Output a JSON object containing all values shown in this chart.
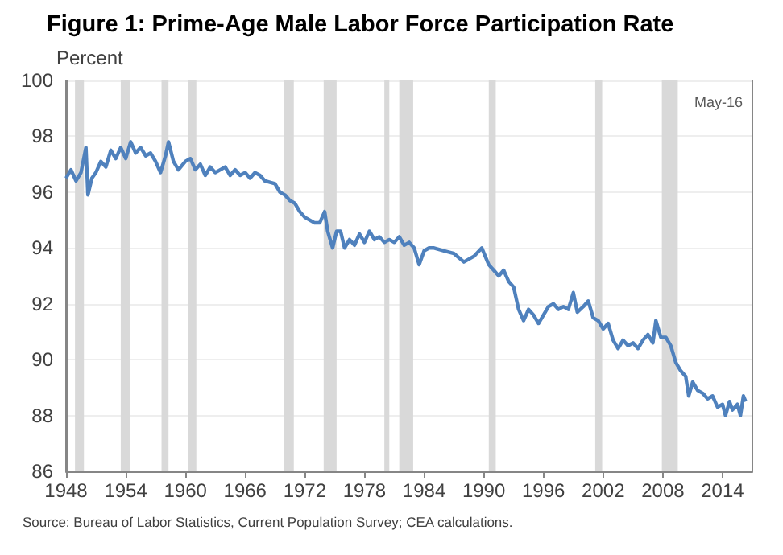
{
  "chart_data": {
    "type": "line",
    "title": "Figure 1: Prime-Age Male Labor Force Participation Rate",
    "ylabel": "Percent",
    "annotations": [
      "May-16",
      "Source: Bureau of Labor Statistics, Current Population Survey; CEA calculations."
    ],
    "x": [
      1948.0,
      1948.5,
      1949.0,
      1949.5,
      1950.0,
      1950.2,
      1950.6,
      1951.0,
      1951.5,
      1952.0,
      1952.5,
      1953.0,
      1953.5,
      1954.0,
      1954.5,
      1955.0,
      1955.5,
      1956.0,
      1956.5,
      1957.0,
      1957.5,
      1958.0,
      1958.3,
      1958.8,
      1959.3,
      1960.0,
      1960.5,
      1961.0,
      1961.5,
      1962.0,
      1962.5,
      1963.0,
      1964.0,
      1964.5,
      1965.0,
      1965.5,
      1966.0,
      1966.5,
      1967.0,
      1967.5,
      1968.0,
      1969.0,
      1969.5,
      1970.0,
      1970.5,
      1971.0,
      1971.5,
      1972.0,
      1972.5,
      1973.0,
      1973.5,
      1974.0,
      1974.3,
      1974.8,
      1975.2,
      1975.6,
      1976.0,
      1976.5,
      1977.0,
      1977.5,
      1978.0,
      1978.5,
      1979.0,
      1979.5,
      1980.0,
      1980.5,
      1981.0,
      1981.5,
      1982.0,
      1982.5,
      1983.0,
      1983.5,
      1984.0,
      1984.5,
      1985.0,
      1986.0,
      1987.0,
      1988.0,
      1989.0,
      1989.8,
      1990.5,
      1991.0,
      1991.5,
      1992.0,
      1992.5,
      1993.0,
      1993.5,
      1994.0,
      1994.5,
      1995.0,
      1995.5,
      1996.0,
      1996.5,
      1997.0,
      1997.5,
      1998.0,
      1998.5,
      1999.0,
      1999.4,
      2000.0,
      2000.5,
      2001.0,
      2001.5,
      2002.0,
      2002.5,
      2003.0,
      2003.5,
      2004.0,
      2004.5,
      2005.0,
      2005.5,
      2006.0,
      2006.5,
      2007.0,
      2007.3,
      2007.8,
      2008.3,
      2008.8,
      2009.3,
      2009.8,
      2010.3,
      2010.6,
      2011.0,
      2011.5,
      2012.0,
      2012.5,
      2013.0,
      2013.5,
      2014.0,
      2014.3,
      2014.7,
      2015.0,
      2015.5,
      2015.8,
      2016.1,
      2016.33
    ],
    "series": [
      {
        "color": "#4f81bd",
        "values": [
          96.5,
          96.8,
          96.4,
          96.7,
          97.6,
          95.9,
          96.5,
          96.7,
          97.1,
          96.9,
          97.5,
          97.2,
          97.6,
          97.2,
          97.8,
          97.4,
          97.6,
          97.3,
          97.4,
          97.1,
          96.7,
          97.3,
          97.8,
          97.1,
          96.8,
          97.1,
          97.2,
          96.8,
          97.0,
          96.6,
          96.9,
          96.7,
          96.9,
          96.6,
          96.8,
          96.6,
          96.7,
          96.5,
          96.7,
          96.6,
          96.4,
          96.3,
          96.0,
          95.9,
          95.7,
          95.6,
          95.3,
          95.1,
          95.0,
          94.9,
          94.9,
          95.3,
          94.6,
          94.0,
          94.6,
          94.6,
          94.0,
          94.3,
          94.1,
          94.5,
          94.2,
          94.6,
          94.3,
          94.4,
          94.2,
          94.3,
          94.2,
          94.4,
          94.1,
          94.2,
          94.0,
          93.4,
          93.9,
          94.0,
          94.0,
          93.9,
          93.8,
          93.5,
          93.7,
          94.0,
          93.4,
          93.2,
          93.0,
          93.2,
          92.8,
          92.6,
          91.8,
          91.4,
          91.8,
          91.6,
          91.3,
          91.6,
          91.9,
          92.0,
          91.8,
          91.9,
          91.8,
          92.4,
          91.7,
          91.9,
          92.1,
          91.5,
          91.4,
          91.1,
          91.3,
          90.7,
          90.4,
          90.7,
          90.5,
          90.6,
          90.4,
          90.7,
          90.9,
          90.6,
          91.4,
          90.8,
          90.8,
          90.5,
          89.9,
          89.6,
          89.4,
          88.7,
          89.2,
          88.9,
          88.8,
          88.6,
          88.7,
          88.3,
          88.4,
          88.0,
          88.5,
          88.2,
          88.4,
          88.0,
          88.7,
          88.5
        ]
      }
    ],
    "xlim": [
      1948,
      2017
    ],
    "xticks": [
      1948,
      1954,
      1960,
      1966,
      1972,
      1978,
      1984,
      1990,
      1996,
      2002,
      2008,
      2014
    ],
    "ylim": [
      86,
      100
    ],
    "yticks": [
      86,
      88,
      90,
      92,
      94,
      96,
      98,
      100
    ],
    "grid": "y",
    "bands": [
      {
        "axis": "x",
        "from": 1948.9,
        "to": 1949.8,
        "color": "#d9d9d9"
      },
      {
        "axis": "x",
        "from": 1953.5,
        "to": 1954.4,
        "color": "#d9d9d9"
      },
      {
        "axis": "x",
        "from": 1957.6,
        "to": 1958.3,
        "color": "#d9d9d9"
      },
      {
        "axis": "x",
        "from": 1960.3,
        "to": 1961.1,
        "color": "#d9d9d9"
      },
      {
        "axis": "x",
        "from": 1969.9,
        "to": 1970.9,
        "color": "#d9d9d9"
      },
      {
        "axis": "x",
        "from": 1973.9,
        "to": 1975.2,
        "color": "#d9d9d9"
      },
      {
        "axis": "x",
        "from": 1980.0,
        "to": 1980.5,
        "color": "#d9d9d9"
      },
      {
        "axis": "x",
        "from": 1981.5,
        "to": 1982.9,
        "color": "#d9d9d9"
      },
      {
        "axis": "x",
        "from": 1990.5,
        "to": 1991.2,
        "color": "#d9d9d9"
      },
      {
        "axis": "x",
        "from": 2001.2,
        "to": 2001.9,
        "color": "#d9d9d9"
      },
      {
        "axis": "x",
        "from": 2007.9,
        "to": 2009.5,
        "color": "#d9d9d9"
      }
    ]
  }
}
